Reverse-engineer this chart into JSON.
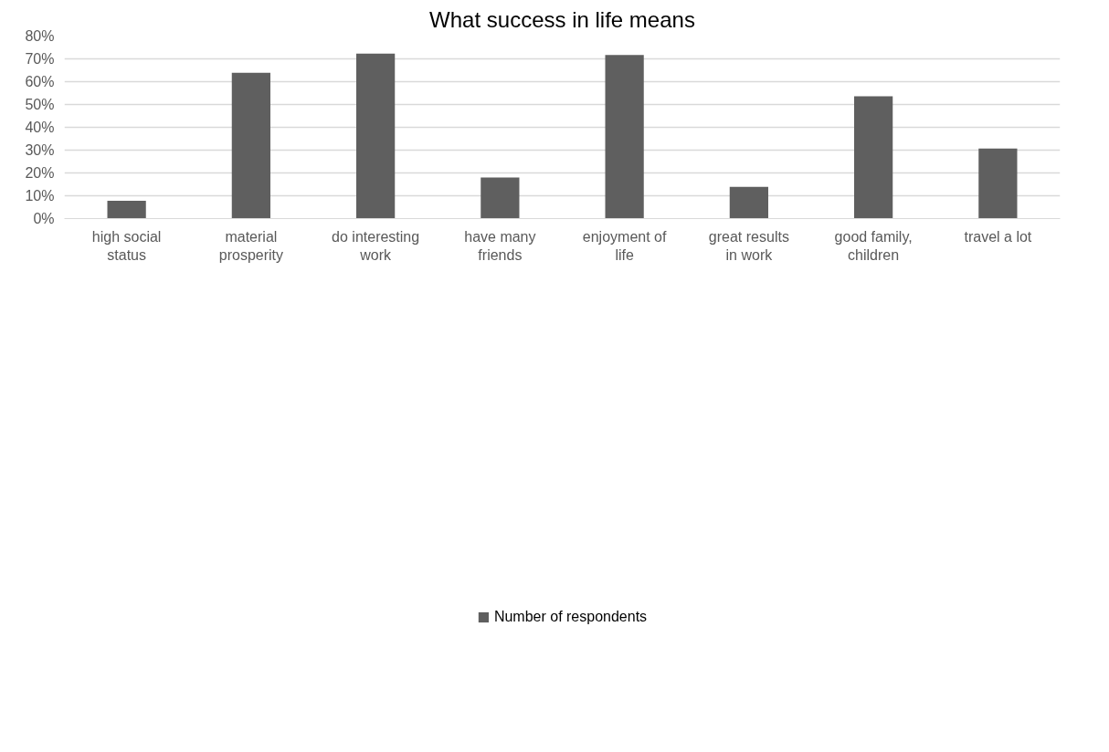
{
  "chart_data": {
    "type": "bar",
    "title": "What success in life means",
    "categories": [
      "high social status",
      "material prosperity",
      "do interesting work",
      "have many friends",
      "enjoyment of life",
      "great results in work",
      "good family, children",
      "travel a lot"
    ],
    "series": [
      {
        "name": "Number of respondents",
        "color": "#5f5f5f",
        "values": [
          7.8,
          63.9,
          72.3,
          18.0,
          71.7,
          13.9,
          53.6,
          30.7
        ]
      }
    ],
    "ylim": [
      0,
      80
    ],
    "yticks": [
      {
        "value": 0,
        "label": "0%"
      },
      {
        "value": 10,
        "label": "10%"
      },
      {
        "value": 20,
        "label": "20%"
      },
      {
        "value": 30,
        "label": "30%"
      },
      {
        "value": 40,
        "label": "40%"
      },
      {
        "value": 50,
        "label": "50%"
      },
      {
        "value": 60,
        "label": "60%"
      },
      {
        "value": 70,
        "label": "70%"
      },
      {
        "value": 80,
        "label": "80%"
      }
    ],
    "grid": "y",
    "legend": "bottom"
  }
}
